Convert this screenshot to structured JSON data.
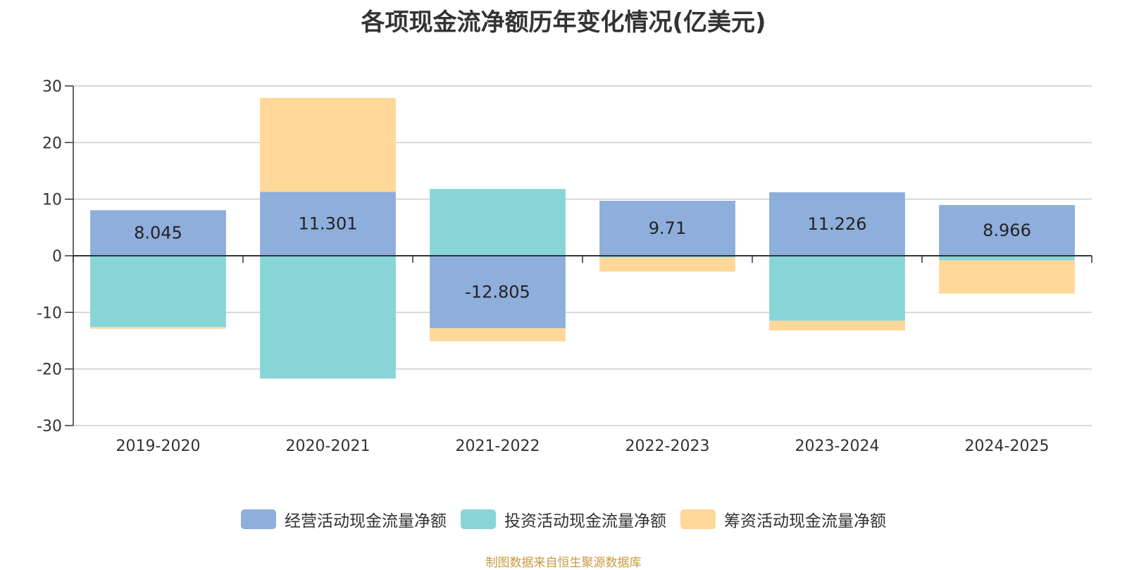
{
  "title": "各项现金流净额历年变化情况(亿美元)",
  "source_note": "制图数据来自恒生聚源数据库",
  "chart_data": {
    "type": "bar",
    "stacked": true,
    "title": "各项现金流净额历年变化情况(亿美元)",
    "categories": [
      "2019-2020",
      "2020-2021",
      "2021-2022",
      "2022-2023",
      "2023-2024",
      "2024-2025"
    ],
    "ylim": [
      -30,
      30
    ],
    "yticks": [
      30,
      20,
      10,
      0,
      -10,
      -20,
      -30
    ],
    "grid": true,
    "legend_position": "bottom",
    "series": [
      {
        "name": "经营活动现金流量净额",
        "color": "#8eaedb",
        "values": [
          8.045,
          11.301,
          -12.805,
          9.71,
          11.226,
          8.966
        ],
        "labels": [
          "8.045",
          "11.301",
          "-12.805",
          "9.71",
          "11.226",
          "8.966"
        ]
      },
      {
        "name": "投资活动现金流量净额",
        "color": "#88d5d8",
        "values": [
          -12.6,
          -21.7,
          11.8,
          -0.3,
          -11.5,
          -0.8
        ],
        "labels": []
      },
      {
        "name": "筹资活动现金流量净额",
        "color": "#ffd899",
        "values": [
          -0.3,
          16.6,
          -2.3,
          -2.5,
          -1.7,
          -5.9
        ],
        "labels": []
      }
    ]
  }
}
